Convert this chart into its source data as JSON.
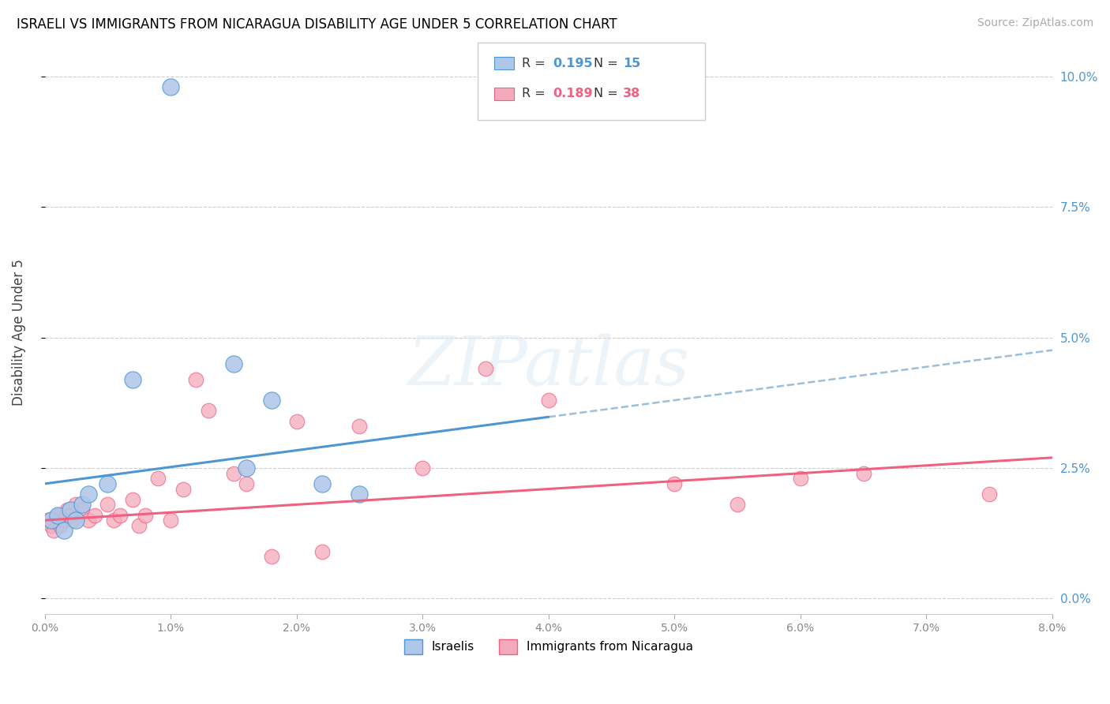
{
  "title": "ISRAELI VS IMMIGRANTS FROM NICARAGUA DISABILITY AGE UNDER 5 CORRELATION CHART",
  "source": "Source: ZipAtlas.com",
  "ylabel": "Disability Age Under 5",
  "legend_r1": "R = 0.195",
  "legend_n1": "N = 15",
  "legend_r2": "R = 0.189",
  "legend_n2": "N = 38",
  "blue_color": "#aec6e8",
  "pink_color": "#f5aabb",
  "blue_line_color": "#4d96d4",
  "pink_line_color": "#f06080",
  "dashed_line_color": "#90b8d8",
  "israelis_x": [
    0.05,
    0.1,
    0.15,
    0.2,
    0.25,
    0.3,
    0.35,
    0.5,
    0.7,
    1.0,
    1.5,
    1.8,
    2.2,
    2.5,
    1.6
  ],
  "israelis_y": [
    1.5,
    1.6,
    1.3,
    1.7,
    1.5,
    1.8,
    2.0,
    2.2,
    4.2,
    9.8,
    4.5,
    3.8,
    2.2,
    2.0,
    2.5
  ],
  "nicaragua_x": [
    0.02,
    0.05,
    0.07,
    0.1,
    0.12,
    0.15,
    0.18,
    0.2,
    0.22,
    0.25,
    0.3,
    0.35,
    0.4,
    0.5,
    0.55,
    0.6,
    0.7,
    0.75,
    0.8,
    0.9,
    1.0,
    1.1,
    1.2,
    1.3,
    1.5,
    1.6,
    1.8,
    2.0,
    2.2,
    2.5,
    3.0,
    3.5,
    4.0,
    5.0,
    5.5,
    6.0,
    6.5,
    7.5
  ],
  "nicaragua_y": [
    1.5,
    1.4,
    1.3,
    1.6,
    1.4,
    1.5,
    1.7,
    1.6,
    1.5,
    1.8,
    1.7,
    1.5,
    1.6,
    1.8,
    1.5,
    1.6,
    1.9,
    1.4,
    1.6,
    2.3,
    1.5,
    2.1,
    4.2,
    3.6,
    2.4,
    2.2,
    0.8,
    3.4,
    0.9,
    3.3,
    2.5,
    4.4,
    3.8,
    2.2,
    1.8,
    2.3,
    2.4,
    2.0
  ],
  "blue_line_x0": 0.0,
  "blue_line_x_solid_end": 4.0,
  "blue_line_x_dashed_end": 8.0,
  "blue_line_y0": 2.2,
  "blue_line_slope": 0.32,
  "pink_line_x0": 0.0,
  "pink_line_x1": 8.0,
  "pink_line_y0": 1.5,
  "pink_line_y1": 2.7,
  "xmin": 0.0,
  "xmax": 8.0,
  "ymin": -0.3,
  "ymax": 10.5,
  "ytick_vals": [
    0.0,
    2.5,
    5.0,
    7.5,
    10.0
  ],
  "marker_size": 180,
  "watermark": "ZIPatlas"
}
